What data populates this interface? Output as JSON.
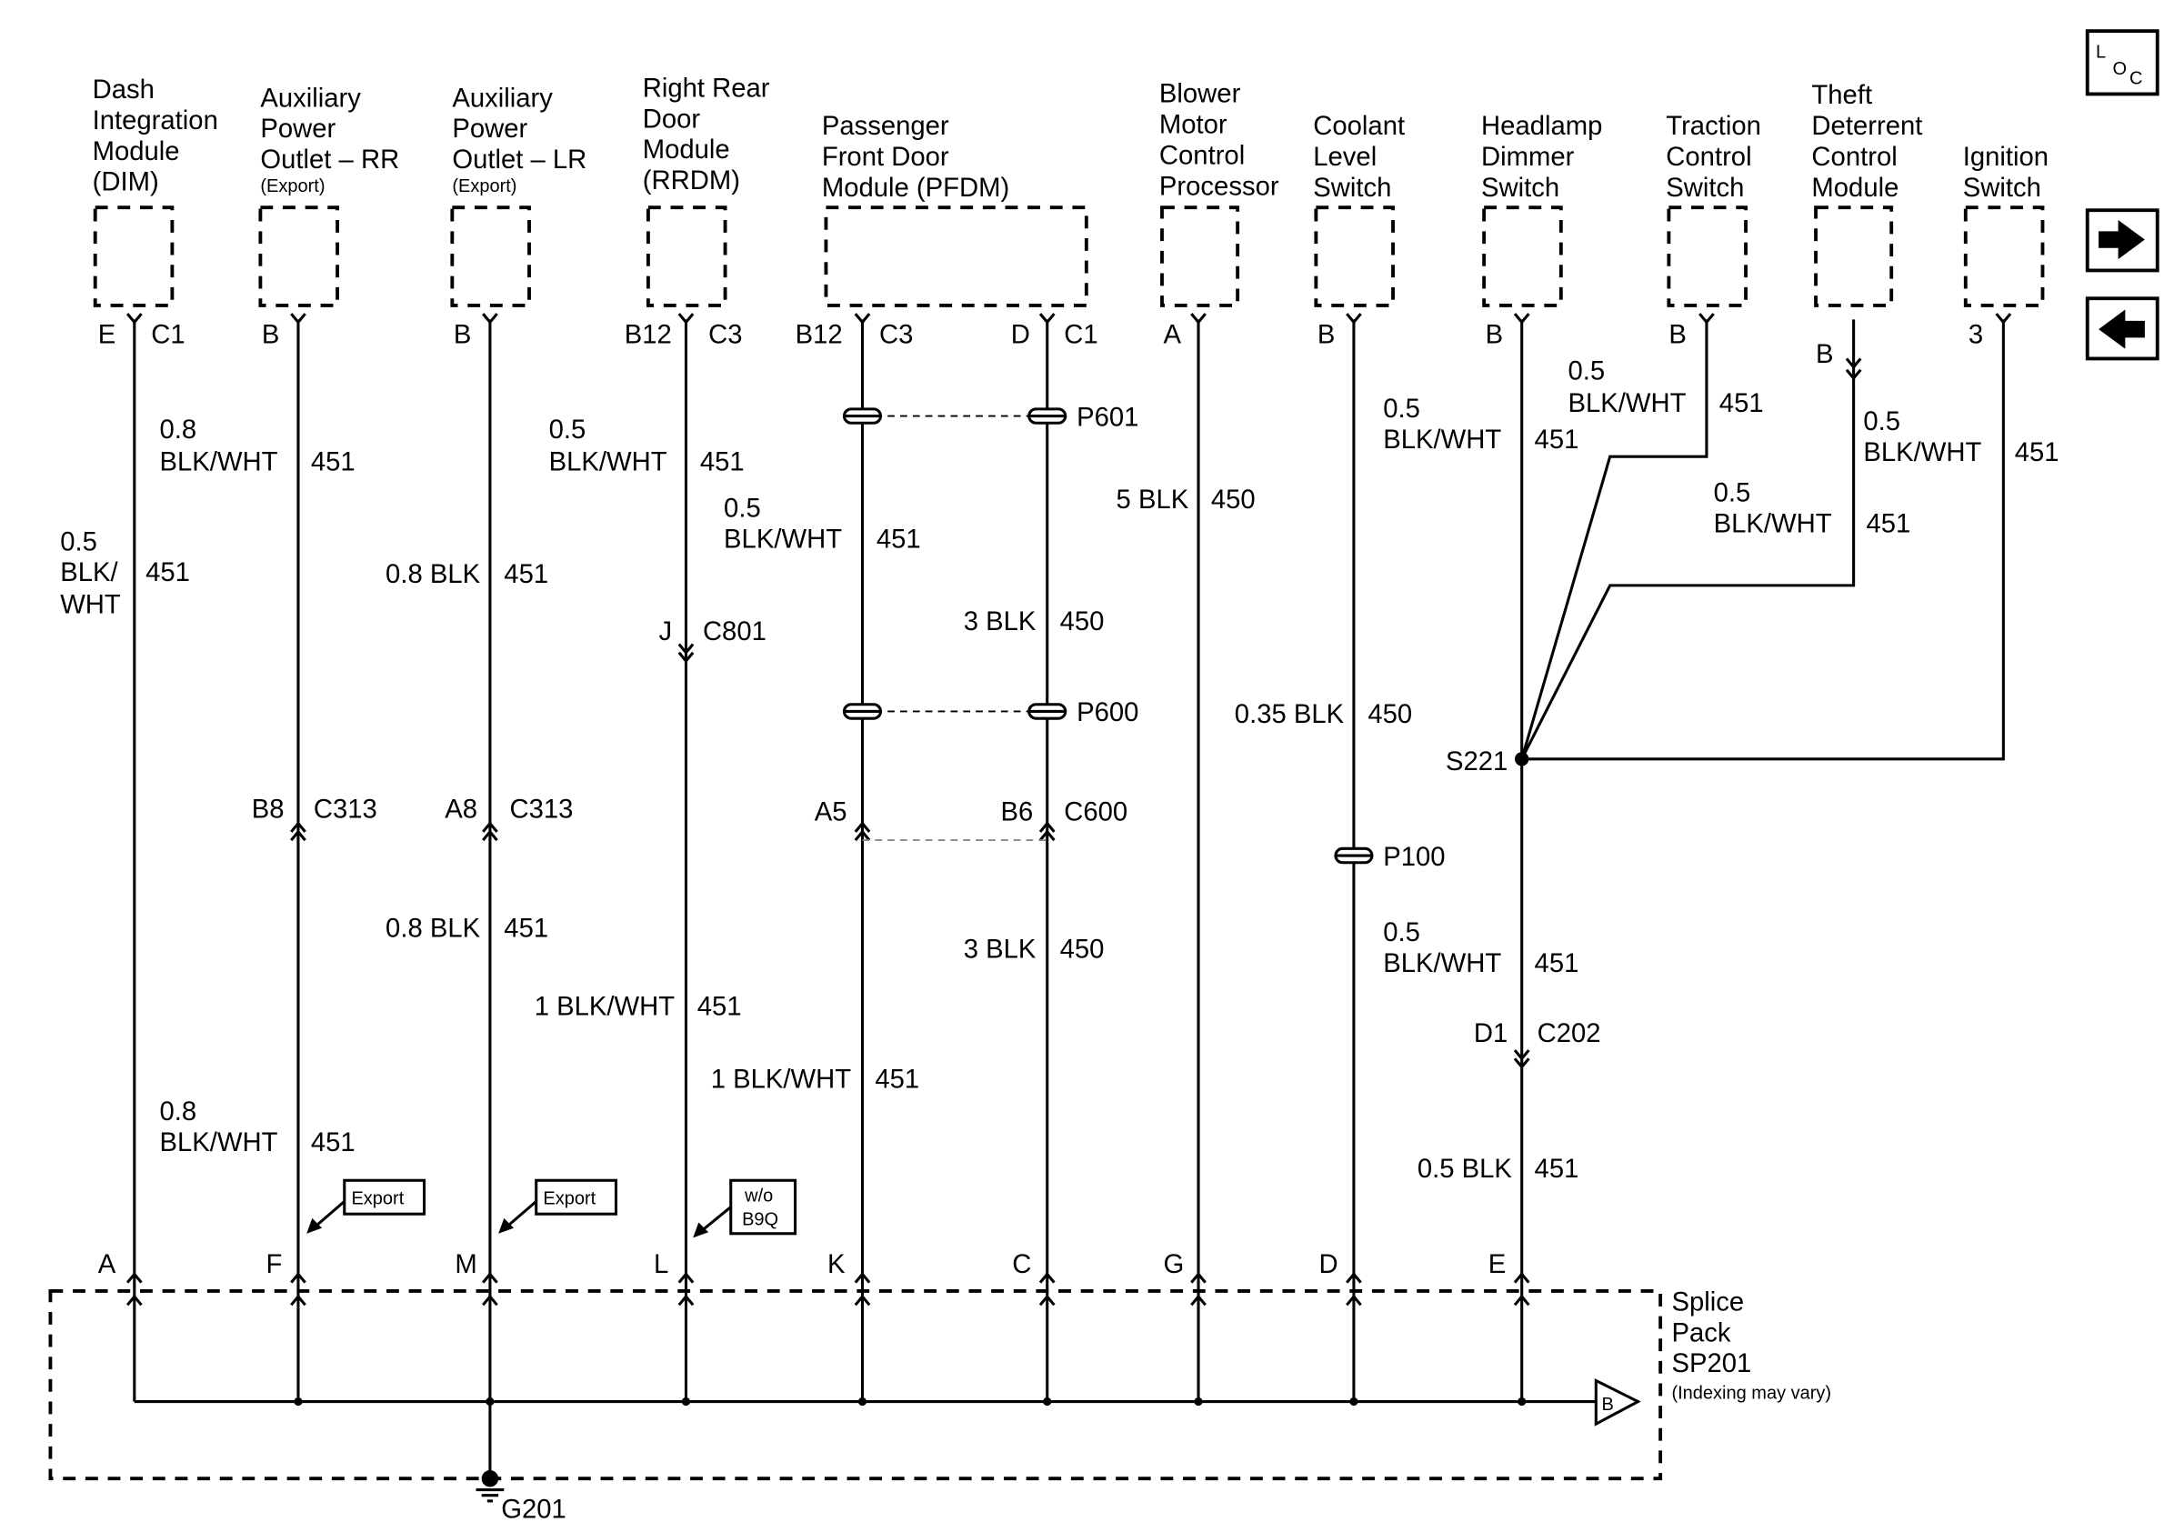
{
  "components": {
    "dim": {
      "lines": [
        "Dash",
        "Integration",
        "Module",
        "(DIM)"
      ]
    },
    "apo_rr": {
      "lines": [
        "Auxiliary",
        "Power",
        "Outlet – RR"
      ],
      "note": "(Export)"
    },
    "apo_lr": {
      "lines": [
        "Auxiliary",
        "Power",
        "Outlet – LR"
      ],
      "note": "(Export)"
    },
    "rrdm": {
      "lines": [
        "Right Rear",
        "Door",
        "Module",
        "(RRDM)"
      ]
    },
    "pfdm": {
      "lines": [
        "Passenger",
        "Front Door",
        "Module (PFDM)"
      ]
    },
    "bmcp": {
      "lines": [
        "Blower",
        "Motor",
        "Control",
        "Processor"
      ]
    },
    "cls": {
      "lines": [
        "Coolant",
        "Level",
        "Switch"
      ]
    },
    "hds": {
      "lines": [
        "Headlamp",
        "Dimmer",
        "Switch"
      ]
    },
    "tcs": {
      "lines": [
        "Traction",
        "Control",
        "Switch"
      ]
    },
    "tdcm": {
      "lines": [
        "Theft",
        "Deterrent",
        "Control",
        "Module"
      ]
    },
    "ign": {
      "lines": [
        "Ignition",
        "Switch"
      ]
    }
  },
  "pins_top": {
    "dim": [
      "E",
      "C1"
    ],
    "apo_rr": [
      "B"
    ],
    "apo_lr": [
      "B"
    ],
    "rrdm": [
      "B12",
      "C3"
    ],
    "pfdm_l": [
      "B12",
      "C3"
    ],
    "pfdm_r": [
      "D",
      "C1"
    ],
    "bmcp": [
      "A"
    ],
    "cls": [
      "B"
    ],
    "hds": [
      "B"
    ],
    "tcs": [
      "B"
    ],
    "tdcm": [
      "B"
    ],
    "ign": [
      "3"
    ]
  },
  "wires": {
    "dim": {
      "gauge": "0.5",
      "color": [
        "BLK/",
        "WHT"
      ],
      "circuit": "451"
    },
    "rr_upper": {
      "gauge": "0.8",
      "color": "BLK/WHT",
      "circuit": "451"
    },
    "rr_lower": {
      "gauge": "0.8",
      "color": "BLK/WHT",
      "circuit": "451"
    },
    "lr_upper": {
      "label": "0.8 BLK",
      "circuit": "451"
    },
    "lr_lower": {
      "label": "0.8 BLK",
      "circuit": "451"
    },
    "rrdm_upper": {
      "gauge": "0.5",
      "color": "BLK/WHT",
      "circuit": "451"
    },
    "rrdm_lower": {
      "label": "1 BLK/WHT",
      "circuit": "451"
    },
    "pfdm_l_upper": {
      "gauge": "0.5",
      "color": "BLK/WHT",
      "circuit": "451"
    },
    "pfdm_l_lower": {
      "label": "1 BLK/WHT",
      "circuit": "451"
    },
    "pfdm_r_upper": {
      "label": "3 BLK",
      "circuit": "450"
    },
    "pfdm_r_lower": {
      "label": "3 BLK",
      "circuit": "450"
    },
    "bmcp": {
      "label": "5 BLK",
      "circuit": "450"
    },
    "cls": {
      "label": "0.35 BLK",
      "circuit": "450"
    },
    "hds_upper": {
      "gauge": "0.5",
      "color": "BLK/WHT",
      "circuit": "451"
    },
    "hds_mid": {
      "gauge": "0.5",
      "color": "BLK/WHT",
      "circuit": "451"
    },
    "hds_lower": {
      "label": "0.5 BLK",
      "circuit": "451"
    },
    "tcs": {
      "gauge": "0.5",
      "color": "BLK/WHT",
      "circuit": "451"
    },
    "tdcm_right": {
      "gauge": "0.5",
      "color": "BLK/WHT",
      "circuit": "451"
    },
    "tdcm_left": {
      "gauge": "0.5",
      "color": "BLK/WHT",
      "circuit": "451"
    }
  },
  "connectors": {
    "c801": {
      "pin": "J",
      "name": "C801"
    },
    "c313_rr": {
      "pin": "B8",
      "name": "C313"
    },
    "c313_lr": {
      "pin": "A8",
      "name": "C313"
    },
    "c600_l": {
      "pin": "A5"
    },
    "c600_r": {
      "pin": "B6",
      "name": "C600"
    },
    "p601": "P601",
    "p600": "P600",
    "p100": "P100",
    "c202": {
      "pin": "D1",
      "name": "C202"
    },
    "s221": "S221"
  },
  "pins_bottom": [
    "A",
    "F",
    "M",
    "L",
    "K",
    "C",
    "G",
    "D",
    "E"
  ],
  "callouts": {
    "export": "Export",
    "wo_b9q": [
      "w/o",
      "B9Q"
    ]
  },
  "splice_pack": {
    "lines": [
      "Splice",
      "Pack",
      "SP201"
    ],
    "note": "(Indexing may vary)",
    "offpage": "B"
  },
  "ground": "G201",
  "nav": {
    "loc_icon": "location-view",
    "next_icon": "arrow-right",
    "prev_icon": "arrow-left",
    "loc_letters": [
      "L",
      "O",
      "C"
    ]
  }
}
